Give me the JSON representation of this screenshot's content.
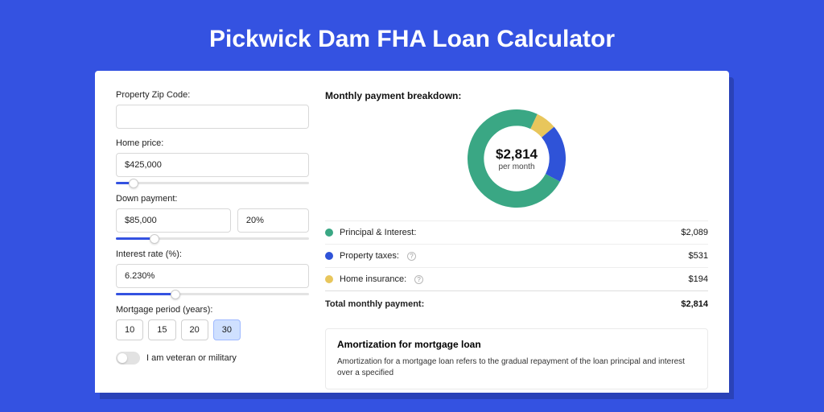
{
  "page": {
    "title": "Pickwick Dam FHA Loan Calculator",
    "bg_color": "#3452e1"
  },
  "form": {
    "zip": {
      "label": "Property Zip Code:",
      "value": ""
    },
    "home_price": {
      "label": "Home price:",
      "value": "$425,000",
      "slider_pct": 9
    },
    "down_payment": {
      "label": "Down payment:",
      "value": "$85,000",
      "pct_value": "20%",
      "slider_pct": 20
    },
    "interest": {
      "label": "Interest rate (%):",
      "value": "6.230%",
      "slider_pct": 31
    },
    "period": {
      "label": "Mortgage period (years):",
      "options": [
        "10",
        "15",
        "20",
        "30"
      ],
      "selected": "30"
    },
    "veteran": {
      "label": "I am veteran or military",
      "checked": false
    }
  },
  "breakdown": {
    "title": "Monthly payment breakdown:",
    "center_amount": "$2,814",
    "center_sub": "per month",
    "items": [
      {
        "label": "Principal & Interest:",
        "value": "$2,089",
        "color": "#3aa784",
        "pct": 74.2,
        "info": false
      },
      {
        "label": "Property taxes:",
        "value": "$531",
        "color": "#2f53d8",
        "pct": 18.9,
        "info": true
      },
      {
        "label": "Home insurance:",
        "value": "$194",
        "color": "#e8c65c",
        "pct": 6.9,
        "info": true
      }
    ],
    "total": {
      "label": "Total monthly payment:",
      "value": "$2,814"
    }
  },
  "amortization": {
    "title": "Amortization for mortgage loan",
    "text": "Amortization for a mortgage loan refers to the gradual repayment of the loan principal and interest over a specified"
  },
  "donut_style": {
    "stroke_width": 20,
    "radius": 50,
    "bg": "#ffffff"
  }
}
